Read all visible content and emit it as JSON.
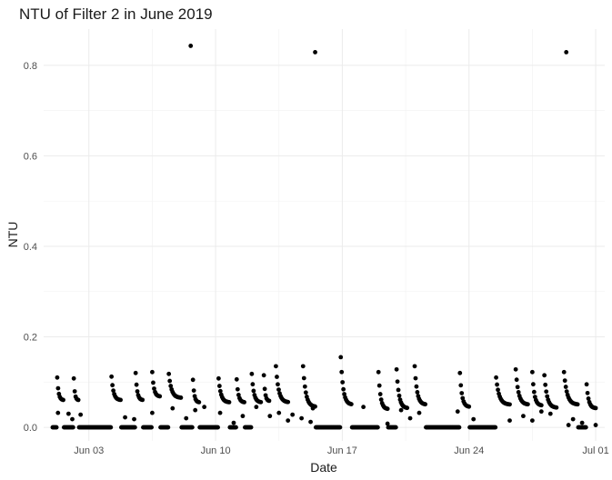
{
  "chart_data": {
    "type": "scatter",
    "title": "NTU of Filter 2 in June 2019",
    "xlabel": "Date",
    "ylabel": "NTU",
    "x_type": "date",
    "xlim": [
      "2019-05-31T12:00",
      "2019-07-01T12:00"
    ],
    "ylim": [
      -0.03,
      0.88
    ],
    "x_ticks": [
      "2019-06-03",
      "2019-06-10",
      "2019-06-17",
      "2019-06-24",
      "2019-07-01"
    ],
    "x_tick_labels": [
      "Jun 03",
      "Jun 10",
      "Jun 17",
      "Jun 24",
      "Jul 01"
    ],
    "y_ticks": [
      0.0,
      0.2,
      0.4,
      0.6,
      0.8
    ],
    "y_tick_labels": [
      "0.0",
      "0.2",
      "0.4",
      "0.6",
      "0.8"
    ],
    "grid": true,
    "legend": "none",
    "point_color": "#000000",
    "runs": [
      {
        "start": "2019-06-01T06:00",
        "end": "2019-06-01T14:00",
        "peak": 0.11,
        "end_value": 0.06
      },
      {
        "start": "2019-06-02T04:00",
        "end": "2019-06-02T10:00",
        "peak": 0.108,
        "end_value": 0.06
      },
      {
        "start": "2019-06-04T06:00",
        "end": "2019-06-04T18:00",
        "peak": 0.112,
        "end_value": 0.06
      },
      {
        "start": "2019-06-05T14:00",
        "end": "2019-06-05T23:00",
        "peak": 0.12,
        "end_value": 0.06
      },
      {
        "start": "2019-06-06T12:00",
        "end": "2019-06-06T22:00",
        "peak": 0.122,
        "end_value": 0.068
      },
      {
        "start": "2019-06-07T10:00",
        "end": "2019-06-08T02:00",
        "peak": 0.118,
        "end_value": 0.065
      },
      {
        "start": "2019-06-08T18:00",
        "end": "2019-06-09T02:00",
        "peak": 0.105,
        "end_value": 0.055
      },
      {
        "start": "2019-06-10T04:00",
        "end": "2019-06-10T18:00",
        "peak": 0.108,
        "end_value": 0.055
      },
      {
        "start": "2019-06-11T04:00",
        "end": "2019-06-11T14:00",
        "peak": 0.106,
        "end_value": 0.055
      },
      {
        "start": "2019-06-12T00:00",
        "end": "2019-06-12T12:00",
        "peak": 0.118,
        "end_value": 0.055
      },
      {
        "start": "2019-06-12T16:00",
        "end": "2019-06-12T23:00",
        "peak": 0.115,
        "end_value": 0.058
      },
      {
        "start": "2019-06-13T08:00",
        "end": "2019-06-14T00:00",
        "peak": 0.135,
        "end_value": 0.055
      },
      {
        "start": "2019-06-14T20:00",
        "end": "2019-06-15T12:00",
        "peak": 0.135,
        "end_value": 0.045
      },
      {
        "start": "2019-06-16T22:00",
        "end": "2019-06-17T12:00",
        "peak": 0.155,
        "end_value": 0.05
      },
      {
        "start": "2019-06-19T00:00",
        "end": "2019-06-19T12:00",
        "peak": 0.122,
        "end_value": 0.04
      },
      {
        "start": "2019-06-20T00:00",
        "end": "2019-06-20T14:00",
        "peak": 0.128,
        "end_value": 0.042
      },
      {
        "start": "2019-06-21T00:00",
        "end": "2019-06-21T14:00",
        "peak": 0.135,
        "end_value": 0.05
      },
      {
        "start": "2019-06-23T12:00",
        "end": "2019-06-24T00:00",
        "peak": 0.12,
        "end_value": 0.045
      },
      {
        "start": "2019-06-25T12:00",
        "end": "2019-06-26T06:00",
        "peak": 0.11,
        "end_value": 0.05
      },
      {
        "start": "2019-06-26T14:00",
        "end": "2019-06-27T06:00",
        "peak": 0.128,
        "end_value": 0.05
      },
      {
        "start": "2019-06-27T12:00",
        "end": "2019-06-28T00:00",
        "peak": 0.122,
        "end_value": 0.048
      },
      {
        "start": "2019-06-28T04:00",
        "end": "2019-06-28T20:00",
        "peak": 0.115,
        "end_value": 0.043
      },
      {
        "start": "2019-06-29T06:00",
        "end": "2019-06-30T00:00",
        "peak": 0.122,
        "end_value": 0.05
      },
      {
        "start": "2019-06-30T12:00",
        "end": "2019-07-01T00:00",
        "peak": 0.095,
        "end_value": 0.042
      }
    ],
    "zero_ranges": [
      [
        "2019-06-01T00:00",
        "2019-06-01T05:00"
      ],
      [
        "2019-06-01T15:00",
        "2019-06-02T03:00"
      ],
      [
        "2019-06-02T11:00",
        "2019-06-04T05:00"
      ],
      [
        "2019-06-04T19:00",
        "2019-06-05T13:00"
      ],
      [
        "2019-06-06T00:00",
        "2019-06-06T11:00"
      ],
      [
        "2019-06-06T23:00",
        "2019-06-07T09:00"
      ],
      [
        "2019-06-08T03:00",
        "2019-06-08T17:00"
      ],
      [
        "2019-06-09T03:00",
        "2019-06-10T03:00"
      ],
      [
        "2019-06-10T19:00",
        "2019-06-11T03:00"
      ],
      [
        "2019-06-11T15:00",
        "2019-06-11T23:00"
      ],
      [
        "2019-06-15T13:00",
        "2019-06-16T21:00"
      ],
      [
        "2019-06-17T13:00",
        "2019-06-18T23:00"
      ],
      [
        "2019-06-19T13:00",
        "2019-06-19T23:00"
      ],
      [
        "2019-06-21T15:00",
        "2019-06-23T11:00"
      ],
      [
        "2019-06-24T01:00",
        "2019-06-25T11:00"
      ],
      [
        "2019-06-30T01:00",
        "2019-06-30T11:00"
      ]
    ],
    "outliers": [
      {
        "x": "2019-06-08T15:00",
        "y": 0.843
      },
      {
        "x": "2019-06-15T12:00",
        "y": 0.829
      },
      {
        "x": "2019-06-29T09:00",
        "y": 0.829
      }
    ],
    "scattered_points": [
      {
        "x": "2019-06-01T07:00",
        "y": 0.032
      },
      {
        "x": "2019-06-01T21:00",
        "y": 0.03
      },
      {
        "x": "2019-06-02T02:00",
        "y": 0.018
      },
      {
        "x": "2019-06-02T13:00",
        "y": 0.028
      },
      {
        "x": "2019-06-05T00:00",
        "y": 0.022
      },
      {
        "x": "2019-06-05T12:00",
        "y": 0.018
      },
      {
        "x": "2019-06-06T12:00",
        "y": 0.032
      },
      {
        "x": "2019-06-07T15:00",
        "y": 0.042
      },
      {
        "x": "2019-06-08T09:00",
        "y": 0.02
      },
      {
        "x": "2019-06-08T21:00",
        "y": 0.038
      },
      {
        "x": "2019-06-09T09:00",
        "y": 0.045
      },
      {
        "x": "2019-06-10T06:00",
        "y": 0.032
      },
      {
        "x": "2019-06-11T00:00",
        "y": 0.01
      },
      {
        "x": "2019-06-11T12:00",
        "y": 0.025
      },
      {
        "x": "2019-06-12T06:00",
        "y": 0.045
      },
      {
        "x": "2019-06-13T00:00",
        "y": 0.025
      },
      {
        "x": "2019-06-13T12:00",
        "y": 0.032
      },
      {
        "x": "2019-06-14T00:00",
        "y": 0.015
      },
      {
        "x": "2019-06-14T06:00",
        "y": 0.028
      },
      {
        "x": "2019-06-14T18:00",
        "y": 0.02
      },
      {
        "x": "2019-06-15T06:00",
        "y": 0.012
      },
      {
        "x": "2019-06-15T09:00",
        "y": 0.042
      },
      {
        "x": "2019-06-18T04:00",
        "y": 0.045
      },
      {
        "x": "2019-06-19T12:00",
        "y": 0.008
      },
      {
        "x": "2019-06-20T06:00",
        "y": 0.038
      },
      {
        "x": "2019-06-20T18:00",
        "y": 0.02
      },
      {
        "x": "2019-06-21T06:00",
        "y": 0.032
      },
      {
        "x": "2019-06-23T09:00",
        "y": 0.035
      },
      {
        "x": "2019-06-24T06:00",
        "y": 0.018
      },
      {
        "x": "2019-06-26T06:00",
        "y": 0.015
      },
      {
        "x": "2019-06-27T00:00",
        "y": 0.025
      },
      {
        "x": "2019-06-27T12:00",
        "y": 0.015
      },
      {
        "x": "2019-06-28T00:00",
        "y": 0.035
      },
      {
        "x": "2019-06-28T12:00",
        "y": 0.03
      },
      {
        "x": "2019-06-29T12:00",
        "y": 0.005
      },
      {
        "x": "2019-06-29T18:00",
        "y": 0.018
      },
      {
        "x": "2019-06-30T06:00",
        "y": 0.01
      },
      {
        "x": "2019-07-01T00:00",
        "y": 0.005
      }
    ]
  }
}
